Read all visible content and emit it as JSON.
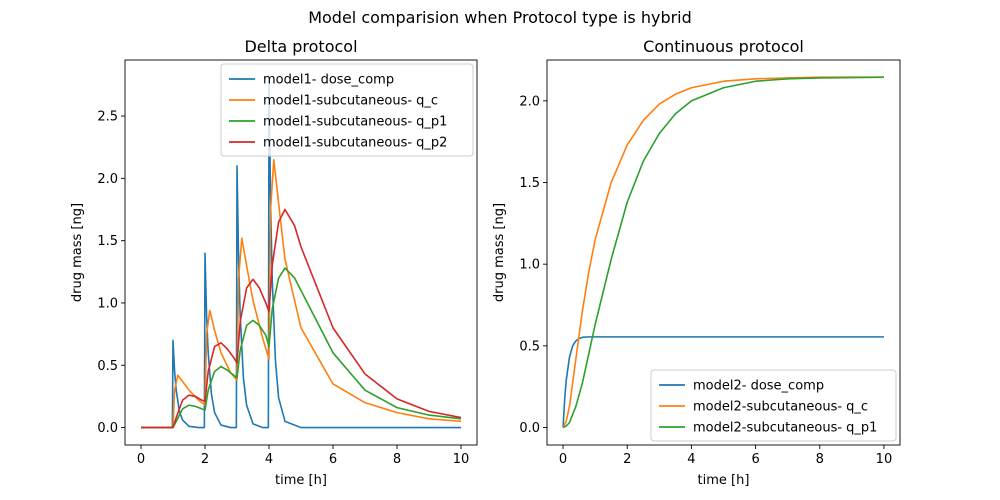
{
  "figure": {
    "suptitle": "Model comparision when Protocol type is hybrid"
  },
  "chart_data": [
    {
      "type": "line",
      "title": "Delta protocol",
      "xlabel": "time [h]",
      "ylabel": "drug mass [ng]",
      "xlim": [
        -0.5,
        10.5
      ],
      "ylim": [
        -0.14,
        2.95
      ],
      "xticks": [
        0,
        2,
        4,
        6,
        8,
        10
      ],
      "yticks": [
        0.0,
        0.5,
        1.0,
        1.5,
        2.0,
        2.5
      ],
      "xtick_labels": [
        "0",
        "2",
        "4",
        "6",
        "8",
        "10"
      ],
      "ytick_labels": [
        "0.0",
        "0.5",
        "1.0",
        "1.5",
        "2.0",
        "2.5"
      ],
      "grid": false,
      "legend_position": "top-right",
      "series": [
        {
          "name": "model1- dose_comp",
          "color": "#1f77b4",
          "x": [
            0,
            0.98,
            1.0,
            1.05,
            1.1,
            1.2,
            1.3,
            1.5,
            1.8,
            1.98,
            2.0,
            2.05,
            2.1,
            2.2,
            2.3,
            2.5,
            2.8,
            2.98,
            3.0,
            3.05,
            3.1,
            3.2,
            3.3,
            3.5,
            3.8,
            3.98,
            4.0,
            4.05,
            4.1,
            4.2,
            4.3,
            4.5,
            5.0,
            6.0,
            10.0
          ],
          "values": [
            0,
            0,
            0.7,
            0.45,
            0.3,
            0.13,
            0.06,
            0.01,
            0,
            0,
            1.4,
            0.9,
            0.6,
            0.27,
            0.12,
            0.02,
            0,
            0,
            2.1,
            1.35,
            0.9,
            0.4,
            0.18,
            0.03,
            0,
            0,
            2.8,
            1.8,
            1.2,
            0.54,
            0.24,
            0.05,
            0,
            0,
            0
          ]
        },
        {
          "name": "model1-subcutaneous- q_c",
          "color": "#ff7f0e",
          "x": [
            0,
            1.0,
            1.05,
            1.15,
            1.3,
            1.5,
            1.8,
            2.0,
            2.05,
            2.15,
            2.3,
            2.5,
            2.8,
            3.0,
            3.05,
            3.15,
            3.3,
            3.5,
            3.8,
            4.0,
            4.05,
            4.15,
            4.3,
            4.5,
            5.0,
            6.0,
            7.0,
            8.0,
            9.0,
            10.0
          ],
          "values": [
            0,
            0,
            0.3,
            0.42,
            0.37,
            0.3,
            0.22,
            0.18,
            0.75,
            0.94,
            0.78,
            0.6,
            0.44,
            0.38,
            1.2,
            1.52,
            1.3,
            1.02,
            0.72,
            0.55,
            1.75,
            2.15,
            1.8,
            1.35,
            0.8,
            0.35,
            0.2,
            0.12,
            0.07,
            0.05
          ]
        },
        {
          "name": "model1-subcutaneous- q_p1",
          "color": "#2ca02c",
          "x": [
            0,
            1.0,
            1.1,
            1.3,
            1.5,
            1.7,
            1.9,
            2.0,
            2.1,
            2.3,
            2.5,
            2.7,
            2.9,
            3.0,
            3.1,
            3.3,
            3.5,
            3.7,
            3.9,
            4.0,
            4.1,
            4.3,
            4.5,
            4.8,
            5.0,
            6.0,
            7.0,
            8.0,
            9.0,
            10.0
          ],
          "values": [
            0,
            0,
            0.05,
            0.15,
            0.18,
            0.17,
            0.15,
            0.14,
            0.3,
            0.45,
            0.49,
            0.46,
            0.42,
            0.4,
            0.62,
            0.82,
            0.86,
            0.82,
            0.74,
            0.65,
            0.95,
            1.2,
            1.28,
            1.2,
            1.1,
            0.6,
            0.3,
            0.16,
            0.1,
            0.07
          ]
        },
        {
          "name": "model1-subcutaneous- q_p2",
          "color": "#d62728",
          "x": [
            0,
            1.0,
            1.1,
            1.3,
            1.5,
            1.7,
            1.9,
            2.0,
            2.1,
            2.3,
            2.5,
            2.7,
            2.9,
            3.0,
            3.1,
            3.3,
            3.5,
            3.7,
            3.9,
            4.0,
            4.1,
            4.3,
            4.5,
            4.8,
            5.0,
            6.0,
            7.0,
            8.0,
            9.0,
            10.0
          ],
          "values": [
            0,
            0,
            0.08,
            0.22,
            0.26,
            0.25,
            0.22,
            0.21,
            0.45,
            0.65,
            0.68,
            0.63,
            0.56,
            0.52,
            0.85,
            1.12,
            1.19,
            1.12,
            1.0,
            0.93,
            1.3,
            1.65,
            1.75,
            1.62,
            1.45,
            0.8,
            0.43,
            0.23,
            0.13,
            0.08
          ]
        }
      ]
    },
    {
      "type": "line",
      "title": "Continuous protocol",
      "xlabel": "time [h]",
      "ylabel": "drug mass [ng]",
      "xlim": [
        -0.5,
        10.5
      ],
      "ylim": [
        -0.107,
        2.25
      ],
      "xticks": [
        0,
        2,
        4,
        6,
        8,
        10
      ],
      "yticks": [
        0.0,
        0.5,
        1.0,
        1.5,
        2.0
      ],
      "xtick_labels": [
        "0",
        "2",
        "4",
        "6",
        "8",
        "10"
      ],
      "ytick_labels": [
        "0.0",
        "0.5",
        "1.0",
        "1.5",
        "2.0"
      ],
      "grid": false,
      "legend_position": "bottom-right",
      "series": [
        {
          "name": "model2- dose_comp",
          "color": "#1f77b4",
          "x": [
            0,
            0.05,
            0.1,
            0.2,
            0.3,
            0.4,
            0.5,
            0.6,
            0.8,
            1.0,
            2.0,
            10.0
          ],
          "values": [
            0,
            0.17,
            0.29,
            0.43,
            0.5,
            0.53,
            0.545,
            0.552,
            0.555,
            0.555,
            0.555,
            0.555
          ]
        },
        {
          "name": "model2-subcutaneous- q_c",
          "color": "#ff7f0e",
          "x": [
            0,
            0.1,
            0.2,
            0.4,
            0.6,
            0.8,
            1.0,
            1.5,
            2.0,
            2.5,
            3.0,
            3.5,
            4.0,
            5.0,
            6.0,
            7.0,
            8.0,
            10.0
          ],
          "values": [
            0,
            0.04,
            0.13,
            0.42,
            0.71,
            0.95,
            1.15,
            1.5,
            1.73,
            1.88,
            1.98,
            2.04,
            2.08,
            2.12,
            2.135,
            2.14,
            2.145,
            2.145
          ]
        },
        {
          "name": "model2-subcutaneous- q_p1",
          "color": "#2ca02c",
          "x": [
            0,
            0.1,
            0.2,
            0.4,
            0.6,
            0.8,
            1.0,
            1.5,
            2.0,
            2.5,
            3.0,
            3.5,
            4.0,
            5.0,
            6.0,
            7.0,
            8.0,
            10.0
          ],
          "values": [
            0,
            0.01,
            0.03,
            0.13,
            0.27,
            0.45,
            0.63,
            1.03,
            1.38,
            1.63,
            1.8,
            1.92,
            2.0,
            2.08,
            2.12,
            2.135,
            2.14,
            2.145
          ]
        }
      ]
    }
  ]
}
